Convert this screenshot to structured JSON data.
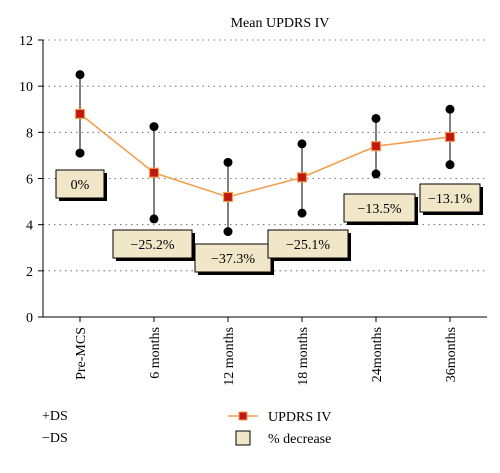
{
  "chart_data": {
    "type": "line",
    "title": "Mean UPDRS IV",
    "xlabel": "",
    "ylabel": "",
    "ylim": [
      0,
      12
    ],
    "yticks": [
      0,
      2,
      4,
      6,
      8,
      10,
      12
    ],
    "grid": true,
    "categories": [
      "Pre-MCS",
      "6 months",
      "12 months",
      "18 months",
      "24months",
      "36months"
    ],
    "series": [
      {
        "name": "UPDRS IV",
        "color": "#f0a050",
        "marker_color": "#c01810",
        "values": [
          8.8,
          6.25,
          5.2,
          6.05,
          7.4,
          7.8
        ],
        "plus_ds": [
          10.5,
          8.25,
          6.7,
          7.5,
          8.6,
          9.0
        ],
        "minus_ds": [
          7.1,
          4.25,
          3.7,
          4.5,
          6.2,
          6.6
        ]
      }
    ],
    "percent_decrease_labels": [
      "0%",
      "−25.2%",
      "−37.3%",
      "−25.1%",
      "−13.5%",
      "−13.1%"
    ],
    "legend": {
      "placement": "bottom",
      "plus_ds_label": "+DS",
      "minus_ds_label": "−DS",
      "series_label": "UPDRS IV",
      "box_label": "% decrease"
    },
    "box_fill": "#f2e6c8"
  }
}
